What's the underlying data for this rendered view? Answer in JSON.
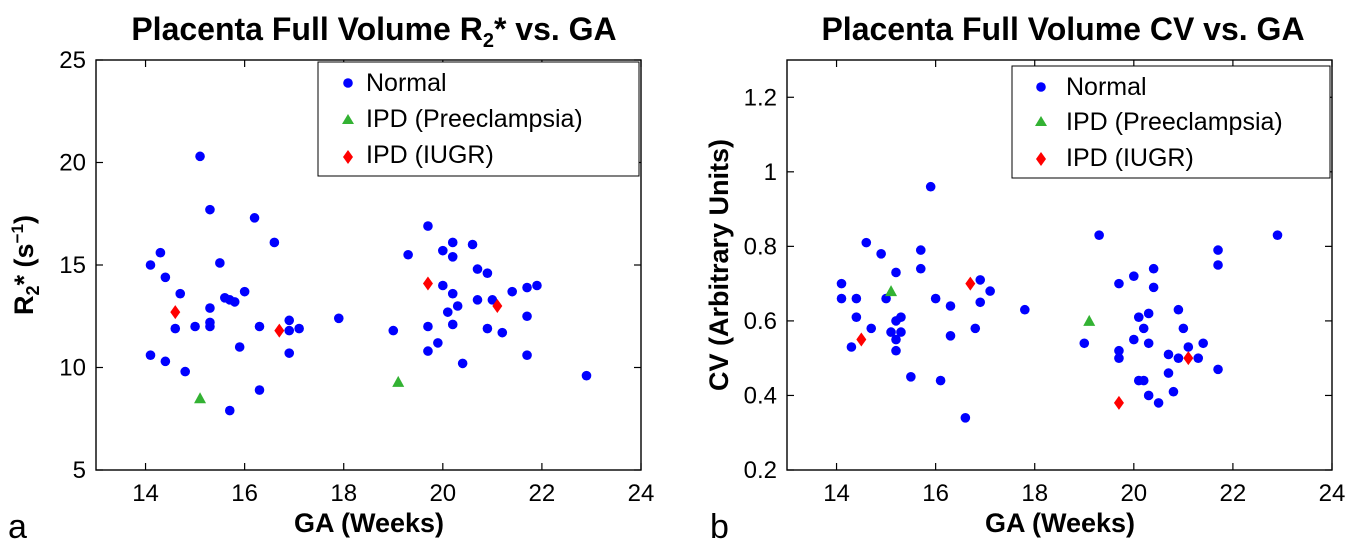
{
  "chart_data": [
    {
      "type": "scatter",
      "panel_letter": "a",
      "title": {
        "main": "Placenta Full Volume R",
        "sub": "2",
        "tail": "* vs. GA"
      },
      "xlabel": "GA (Weeks)",
      "ylabel": {
        "main": "R",
        "sub": "2",
        "tail": "* (s",
        "sup": "−1",
        "end": ")"
      },
      "xlim": [
        13,
        24
      ],
      "ylim": [
        5,
        25
      ],
      "xticks": [
        14,
        16,
        18,
        20,
        22,
        24
      ],
      "yticks": [
        5,
        10,
        15,
        20,
        25
      ],
      "grid": false,
      "legend_position": "top-right",
      "series": [
        {
          "name": "Normal",
          "marker": "circle",
          "color": "#0000ff",
          "points": [
            [
              14.1,
              15.0
            ],
            [
              14.3,
              15.6
            ],
            [
              14.4,
              14.4
            ],
            [
              14.6,
              11.9
            ],
            [
              14.7,
              13.6
            ],
            [
              14.1,
              10.6
            ],
            [
              14.4,
              10.3
            ],
            [
              14.8,
              9.8
            ],
            [
              15.1,
              20.3
            ],
            [
              15.0,
              12.0
            ],
            [
              15.3,
              17.7
            ],
            [
              15.3,
              12.9
            ],
            [
              15.3,
              12.0
            ],
            [
              15.3,
              12.2
            ],
            [
              15.5,
              15.1
            ],
            [
              15.7,
              13.3
            ],
            [
              15.6,
              13.4
            ],
            [
              15.8,
              13.2
            ],
            [
              15.9,
              11.0
            ],
            [
              15.7,
              7.9
            ],
            [
              16.0,
              13.7
            ],
            [
              16.2,
              17.3
            ],
            [
              16.3,
              12.0
            ],
            [
              16.3,
              8.9
            ],
            [
              16.6,
              16.1
            ],
            [
              16.9,
              12.3
            ],
            [
              16.9,
              11.8
            ],
            [
              17.1,
              11.9
            ],
            [
              16.9,
              10.7
            ],
            [
              17.9,
              12.4
            ],
            [
              19.0,
              11.8
            ],
            [
              19.3,
              15.5
            ],
            [
              19.7,
              16.9
            ],
            [
              19.7,
              12.0
            ],
            [
              19.7,
              10.8
            ],
            [
              20.0,
              15.7
            ],
            [
              20.2,
              16.1
            ],
            [
              20.0,
              14.0
            ],
            [
              20.2,
              13.6
            ],
            [
              20.3,
              13.0
            ],
            [
              20.2,
              12.1
            ],
            [
              20.4,
              10.2
            ],
            [
              20.6,
              16.0
            ],
            [
              20.7,
              14.8
            ],
            [
              20.9,
              14.6
            ],
            [
              20.9,
              11.9
            ],
            [
              20.7,
              13.3
            ],
            [
              21.0,
              13.3
            ],
            [
              21.2,
              11.7
            ],
            [
              21.4,
              13.7
            ],
            [
              21.7,
              13.9
            ],
            [
              21.9,
              14.0
            ],
            [
              21.7,
              12.5
            ],
            [
              21.7,
              10.6
            ],
            [
              22.9,
              9.6
            ],
            [
              19.9,
              11.2
            ],
            [
              20.2,
              15.4
            ],
            [
              20.1,
              12.7
            ]
          ]
        },
        {
          "name": "IPD (Preeclampsia)",
          "marker": "triangle",
          "color": "#33b233",
          "points": [
            [
              15.1,
              8.5
            ],
            [
              19.1,
              9.3
            ]
          ]
        },
        {
          "name": "IPD (IUGR)",
          "marker": "diamond",
          "color": "#ff0000",
          "points": [
            [
              14.6,
              12.7
            ],
            [
              16.7,
              11.8
            ],
            [
              19.7,
              14.1
            ],
            [
              21.1,
              13.0
            ]
          ]
        }
      ]
    },
    {
      "type": "scatter",
      "panel_letter": "b",
      "title": {
        "main": "Placenta Full Volume CV vs. GA",
        "sub": "",
        "tail": ""
      },
      "xlabel": "GA (Weeks)",
      "ylabel": {
        "main": "CV (Arbitrary Units)",
        "sub": "",
        "tail": "",
        "sup": "",
        "end": ""
      },
      "xlim": [
        13,
        24
      ],
      "ylim": [
        0.2,
        1.3
      ],
      "xticks": [
        14,
        16,
        18,
        20,
        22,
        24
      ],
      "yticks": [
        0.2,
        0.4,
        0.6,
        0.8,
        1.0,
        1.2
      ],
      "ytick_labels": [
        "0.2",
        "0.4",
        "0.6",
        "0.8",
        "1",
        "1.2"
      ],
      "grid": false,
      "legend_position": "top-right",
      "series": [
        {
          "name": "Normal",
          "marker": "circle",
          "color": "#0000ff",
          "points": [
            [
              14.1,
              0.7
            ],
            [
              14.1,
              0.66
            ],
            [
              14.4,
              0.66
            ],
            [
              14.4,
              0.61
            ],
            [
              14.3,
              0.53
            ],
            [
              14.6,
              0.81
            ],
            [
              14.7,
              0.58
            ],
            [
              14.9,
              0.78
            ],
            [
              15.0,
              0.66
            ],
            [
              15.2,
              0.73
            ],
            [
              15.1,
              0.57
            ],
            [
              15.2,
              0.6
            ],
            [
              15.3,
              0.57
            ],
            [
              15.3,
              0.61
            ],
            [
              15.2,
              0.52
            ],
            [
              15.2,
              0.55
            ],
            [
              15.5,
              0.45
            ],
            [
              15.7,
              0.79
            ],
            [
              15.7,
              0.74
            ],
            [
              15.9,
              0.96
            ],
            [
              16.0,
              0.66
            ],
            [
              16.1,
              0.44
            ],
            [
              16.3,
              0.64
            ],
            [
              16.3,
              0.56
            ],
            [
              16.6,
              0.34
            ],
            [
              16.9,
              0.71
            ],
            [
              16.9,
              0.65
            ],
            [
              16.8,
              0.58
            ],
            [
              17.1,
              0.68
            ],
            [
              17.8,
              0.63
            ],
            [
              19.0,
              0.54
            ],
            [
              19.3,
              0.83
            ],
            [
              19.7,
              0.7
            ],
            [
              19.7,
              0.52
            ],
            [
              19.7,
              0.5
            ],
            [
              20.0,
              0.72
            ],
            [
              20.1,
              0.61
            ],
            [
              20.0,
              0.55
            ],
            [
              20.1,
              0.44
            ],
            [
              20.2,
              0.44
            ],
            [
              20.3,
              0.62
            ],
            [
              20.2,
              0.58
            ],
            [
              20.3,
              0.54
            ],
            [
              20.3,
              0.4
            ],
            [
              20.4,
              0.74
            ],
            [
              20.4,
              0.69
            ],
            [
              20.5,
              0.38
            ],
            [
              20.7,
              0.51
            ],
            [
              20.7,
              0.46
            ],
            [
              20.8,
              0.41
            ],
            [
              20.9,
              0.63
            ],
            [
              20.9,
              0.5
            ],
            [
              21.0,
              0.58
            ],
            [
              21.1,
              0.53
            ],
            [
              21.3,
              0.5
            ],
            [
              21.4,
              0.54
            ],
            [
              21.7,
              0.79
            ],
            [
              21.7,
              0.75
            ],
            [
              21.7,
              0.47
            ],
            [
              22.9,
              0.83
            ]
          ]
        },
        {
          "name": "IPD (Preeclampsia)",
          "marker": "triangle",
          "color": "#33b233",
          "points": [
            [
              15.1,
              0.68
            ],
            [
              19.1,
              0.6
            ]
          ]
        },
        {
          "name": "IPD (IUGR)",
          "marker": "diamond",
          "color": "#ff0000",
          "points": [
            [
              14.5,
              0.55
            ],
            [
              16.7,
              0.7
            ],
            [
              19.7,
              0.38
            ],
            [
              21.1,
              0.5
            ]
          ]
        }
      ]
    }
  ]
}
